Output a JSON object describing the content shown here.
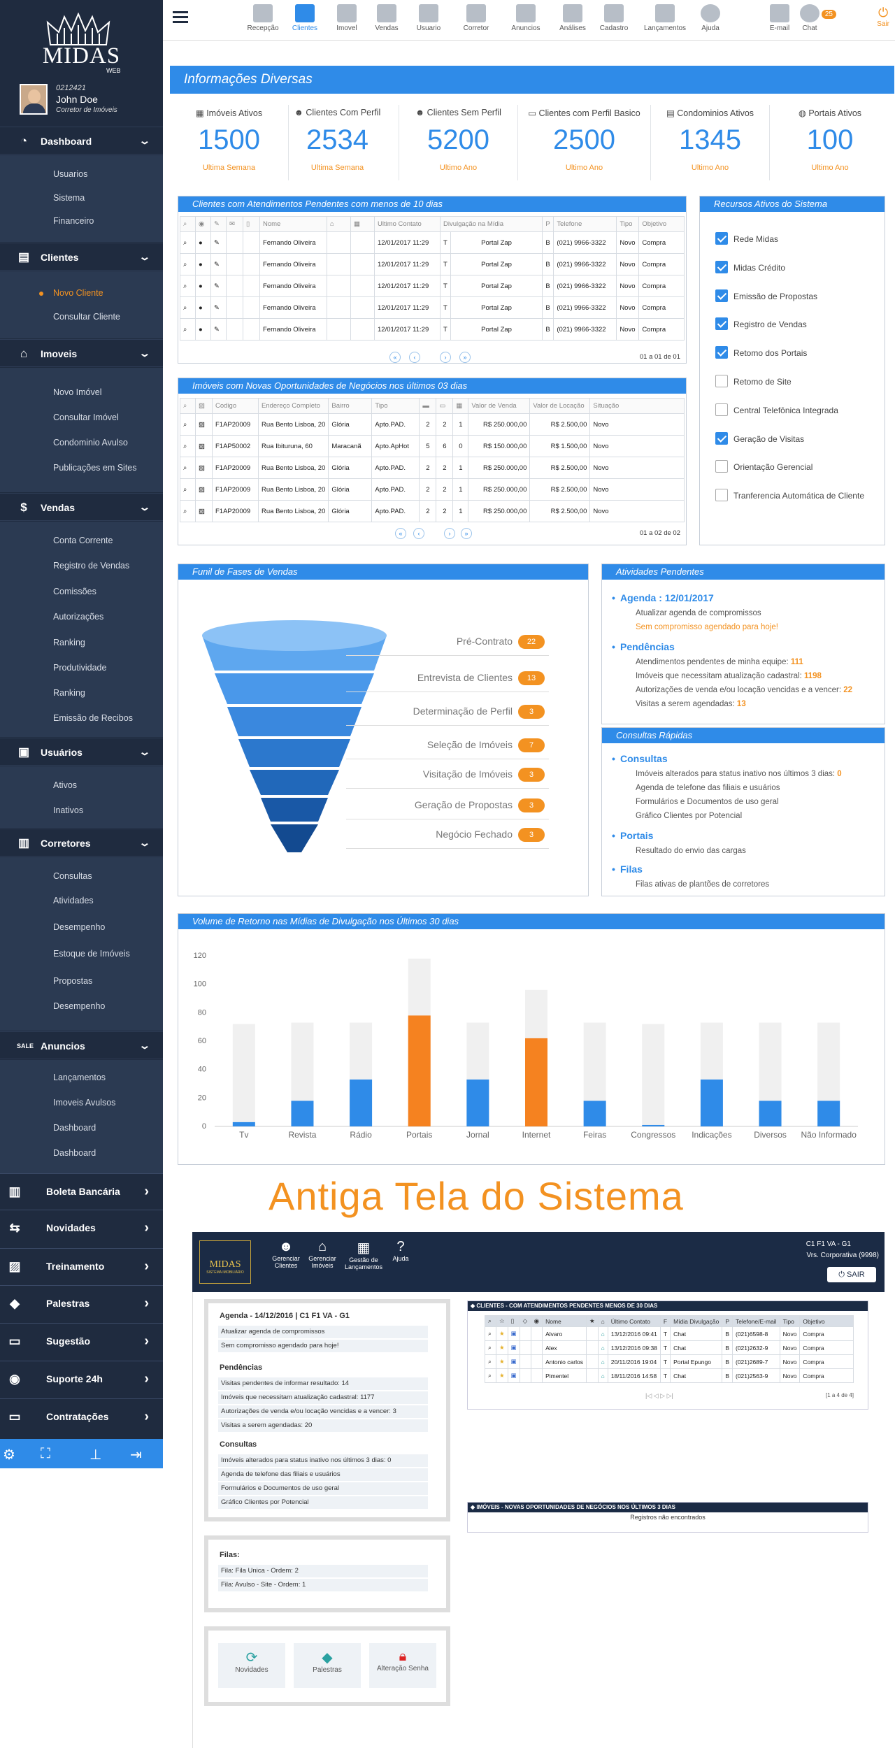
{
  "app": {
    "logo_text": "MIDAS",
    "logo_sub": "WEB",
    "user_code": "0212421",
    "user_name": "John Doe",
    "user_role": "Corretor de Imóveis"
  },
  "sidebar": {
    "dashboard": {
      "label": "Dashboard",
      "items": [
        "Usuarios",
        "Sistema",
        "Financeiro"
      ]
    },
    "clientes": {
      "label": "Clientes",
      "items": [
        "Novo Cliente",
        "Consultar Cliente"
      ]
    },
    "imoveis": {
      "label": "Imoveis",
      "items": [
        "Novo Imóvel",
        "Consultar Imóvel",
        "Condominio Avulso",
        "Publicações em Sites"
      ]
    },
    "vendas": {
      "label": "Vendas",
      "items": [
        "Conta Corrente",
        "Registro de Vendas",
        "Comissões",
        "Autorizações",
        "Ranking",
        "Produtividade",
        "Ranking",
        "Emissão de Recibos"
      ]
    },
    "usuarios": {
      "label": "Usuários",
      "items": [
        "Ativos",
        "Inativos"
      ]
    },
    "corretores": {
      "label": "Corretores",
      "items": [
        "Consultas",
        "Atividades",
        "Desempenho",
        "Estoque de Imóveis",
        "Propostas",
        "Desempenho"
      ]
    },
    "anuncios": {
      "label": "Anuncios",
      "items": [
        "Lançamentos",
        "Imoveis Avulsos",
        "Dashboard",
        "Dashboard"
      ]
    },
    "extra": [
      "Boleta Bancária",
      "Novidades",
      "Treinamento",
      "Palestras",
      "Sugestão",
      "Suporte 24h",
      "Contratações"
    ]
  },
  "toolbar": {
    "items": [
      "Recepção",
      "Clientes",
      "Imovel",
      "Vendas",
      "Usuario",
      "Corretor",
      "Anuncios",
      "Análises",
      "Cadastro",
      "Lançamentos",
      "Ajuda"
    ],
    "right": [
      "E-mail",
      "Chat"
    ],
    "chat_badge": "25",
    "sair": "Sair"
  },
  "info": {
    "title": "Informações Diversas",
    "kpis": [
      {
        "title": "Imóveis Ativos",
        "value": "1500",
        "period": "Ultima Semana"
      },
      {
        "title": "Clientes Com Perfil",
        "value": "2534",
        "period": "Ultima Semana"
      },
      {
        "title": "Clientes Sem Perfil",
        "value": "5200",
        "period": "Ultimo Ano"
      },
      {
        "title": "Clientes com Perfil Basico",
        "value": "2500",
        "period": "Ultimo Ano"
      },
      {
        "title": "Condominios Ativos",
        "value": "1345",
        "period": "Ultimo Ano"
      },
      {
        "title": "Portais Ativos",
        "value": "100",
        "period": "Ultimo Ano"
      }
    ]
  },
  "clientes_pendentes": {
    "title": "Clientes com Atendimentos Pendentes com menos de 10 dias",
    "headers": [
      "Nome",
      "Ultimo Contato",
      "Divulgação na Mídia",
      "P",
      "Telefone",
      "Tipo",
      "Objetivo"
    ],
    "rows": [
      [
        "Fernando Oliveira",
        "12/01/2017 11:29",
        "T",
        "Portal Zap",
        "B",
        "(021) 9966-3322",
        "Novo",
        "Compra"
      ],
      [
        "Fernando Oliveira",
        "12/01/2017 11:29",
        "T",
        "Portal Zap",
        "B",
        "(021) 9966-3322",
        "Novo",
        "Compra"
      ],
      [
        "Fernando Oliveira",
        "12/01/2017 11:29",
        "T",
        "Portal Zap",
        "B",
        "(021) 9966-3322",
        "Novo",
        "Compra"
      ],
      [
        "Fernando Oliveira",
        "12/01/2017 11:29",
        "T",
        "Portal Zap",
        "B",
        "(021) 9966-3322",
        "Novo",
        "Compra"
      ],
      [
        "Fernando Oliveira",
        "12/01/2017 11:29",
        "T",
        "Portal Zap",
        "B",
        "(021) 9966-3322",
        "Novo",
        "Compra"
      ]
    ],
    "pager": "01 a 01 de 01"
  },
  "imoveis_oport": {
    "title": "Imóveis com Novas Oportunidades de Negócios nos últimos  03 dias",
    "headers": [
      "Codigo",
      "Endereço Completo",
      "Bairro",
      "Tipo",
      "Valor de Venda",
      "Valor de Locação",
      "Situação"
    ],
    "rows": [
      [
        "F1AP20009",
        "Rua Bento Lisboa, 20",
        "Glória",
        "Apto.PAD.",
        "2",
        "2",
        "1",
        "R$ 250.000,00",
        "R$ 2.500,00",
        "Novo"
      ],
      [
        "F1AP50002",
        "Rua Ibituruna, 60",
        "Maracanã",
        "Apto.ApHot",
        "5",
        "6",
        "0",
        "R$ 150.000,00",
        "R$ 1.500,00",
        "Novo"
      ],
      [
        "F1AP20009",
        "Rua Bento Lisboa, 20",
        "Glória",
        "Apto.PAD.",
        "2",
        "2",
        "1",
        "R$ 250.000,00",
        "R$ 2.500,00",
        "Novo"
      ],
      [
        "F1AP20009",
        "Rua Bento Lisboa, 20",
        "Glória",
        "Apto.PAD.",
        "2",
        "2",
        "1",
        "R$ 250.000,00",
        "R$ 2.500,00",
        "Novo"
      ],
      [
        "F1AP20009",
        "Rua Bento Lisboa, 20",
        "Glória",
        "Apto.PAD.",
        "2",
        "2",
        "1",
        "R$ 250.000,00",
        "R$ 2.500,00",
        "Novo"
      ]
    ],
    "pager": "01 a 02 de 02"
  },
  "recursos": {
    "title": "Recursos Ativos do Sistema",
    "items": [
      {
        "label": "Rede Midas",
        "on": true
      },
      {
        "label": "Midas Crédito",
        "on": true
      },
      {
        "label": "Emissão de Propostas",
        "on": true
      },
      {
        "label": "Registro de Vendas",
        "on": true
      },
      {
        "label": "Retomo dos Portais",
        "on": true
      },
      {
        "label": "Retomo de Site",
        "on": false
      },
      {
        "label": "Central Telefônica Integrada",
        "on": false
      },
      {
        "label": "Geração de Visitas",
        "on": true
      },
      {
        "label": "Orientação Gerencial",
        "on": false
      },
      {
        "label": "Tranferencia Automática de Cliente",
        "on": false
      }
    ]
  },
  "funil": {
    "title": "Funil de Fases de Vendas",
    "stages": [
      {
        "label": "Pré-Contrato",
        "count": "22"
      },
      {
        "label": "Entrevista de Clientes",
        "count": "13"
      },
      {
        "label": "Determinação de Perfil",
        "count": "3"
      },
      {
        "label": "Seleção de Imóveis",
        "count": "7"
      },
      {
        "label": "Visitação de Imóveis",
        "count": "3"
      },
      {
        "label": "Geração de Propostas",
        "count": "3"
      },
      {
        "label": "Negócio Fechado",
        "count": "3"
      }
    ]
  },
  "atividades": {
    "title": "Atividades Pendentes",
    "agenda": "Agenda : 12/01/2017",
    "agenda_l1": "Atualizar agenda de compromissos",
    "agenda_l2": "Sem compromisso agendado para hoje!",
    "pend_h": "Pendências",
    "pend": [
      {
        "t": "Atendimentos pendentes de minha equipe:",
        "v": "111"
      },
      {
        "t": "Imóveis que necessitam atualização cadastral:",
        "v": "1198"
      },
      {
        "t": "Autorizações de venda e/ou locação vencidas e a vencer:",
        "v": "22"
      },
      {
        "t": "Visitas a serem agendadas:",
        "v": "13"
      }
    ]
  },
  "consultas": {
    "title": "Consultas Rápidas",
    "h1": "Consultas",
    "c1": "Imóveis alterados para status inativo nos últimos 3 dias:",
    "c1v": "0",
    "c2": "Agenda de telefone das filiais e usuários",
    "c3": "Formulários e Documentos de uso geral",
    "c4": "Gráfico Clientes por Potencial",
    "h2": "Portais",
    "p1": "Resultado do envio das cargas",
    "h3": "Filas",
    "f1": "Filas ativas de plantões de corretores"
  },
  "chart_data": {
    "type": "bar",
    "title": "Volume de Retorno nas Mídias de Divulgação nos Últimos 30 dias",
    "categories": [
      "Tv",
      "Revista",
      "Rádio",
      "Portais",
      "Jornal",
      "Internet",
      "Feiras",
      "Congressos",
      "Indicações",
      "Diversos",
      "Não Informado"
    ],
    "series": [
      {
        "values": [
          3,
          18,
          33,
          78,
          33,
          62,
          18,
          1,
          33,
          18,
          18
        ]
      },
      {
        "values": [
          72,
          73,
          73,
          118,
          73,
          96,
          73,
          72,
          73,
          73,
          73
        ]
      }
    ],
    "highlight": [
      3,
      5
    ],
    "colors": {
      "base": "#2f8be8",
      "highlight": "#f58220",
      "bg": "#f0f0f0"
    },
    "yticks": [
      0,
      20,
      40,
      60,
      80,
      100,
      120
    ],
    "ylim": [
      0,
      120
    ]
  },
  "old": {
    "title": "Antiga Tela do Sistema",
    "logo": "MIDAS",
    "logo_sub": "SISTEMA IMOBILIÁRIO",
    "nav": [
      "Gerenciar Clientes",
      "Gerenciar Imóveis",
      "Gestão de Lançamentos",
      "Ajuda"
    ],
    "user": "C1 F1 VA - G1",
    "user2": "Vrs. Corporativa (9998)",
    "sair": "SAIR",
    "agenda_h": "Agenda - 14/12/2016 | C1 F1 VA - G1",
    "agenda": [
      "Atualizar agenda de compromissos",
      "Sem compromisso agendado para hoje!"
    ],
    "pend_h": "Pendências",
    "pend": [
      "Visitas pendentes de informar resultado: 14",
      "Imóveis que necessitam atualização cadastral: 1177",
      "Autorizações de venda e/ou locação vencidas e a vencer: 3",
      "Visitas a serem agendadas: 20"
    ],
    "cons_h": "Consultas",
    "cons": [
      "Imóveis alterados para status inativo nos últimos 3 dias: 0",
      "Agenda de telefone das filiais e usuários",
      "Formulários e Documentos de uso geral",
      "Gráfico Clientes por Potencial"
    ],
    "filas_h": "Filas:",
    "filas": [
      "Fila: Fila Unica - Ordem: 2",
      "Fila: Avulso - Site - Ordem: 1"
    ],
    "tiles": [
      "Novidades",
      "Palestras",
      "Alteração Senha"
    ],
    "clientes_title": "CLIENTES - COM ATENDIMENTOS PENDENTES MENOS DE 30 DIAS",
    "clientes_headers": [
      "Nome",
      "Último Contato",
      "F",
      "Mídia Divulgação",
      "P",
      "Telefone/E-mail",
      "Tipo",
      "Objetivo"
    ],
    "clientes_rows": [
      [
        "Alvaro",
        "13/12/2016 09:41",
        "T",
        "Chat",
        "B",
        "(021)6598-8",
        "Novo",
        "Compra"
      ],
      [
        "Alex",
        "13/12/2016 09:38",
        "T",
        "Chat",
        "B",
        "(021)2632-9",
        "Novo",
        "Compra"
      ],
      [
        "Antonio carlos",
        "20/11/2016 19:04",
        "T",
        "Portal Epungo",
        "B",
        "(021)2689-7",
        "Novo",
        "Compra"
      ],
      [
        "Pimentel",
        "18/11/2016 14:58",
        "T",
        "Chat",
        "B",
        "(021)2563-9",
        "Novo",
        "Compra"
      ]
    ],
    "clientes_pager": "[1 a 4 de 4]",
    "imoveis_title": "IMÓVEIS - NOVAS OPORTUNIDADES DE NEGÓCIOS NOS ÚLTIMOS 3 DIAS",
    "imoveis_empty": "Registros não encontrados"
  }
}
